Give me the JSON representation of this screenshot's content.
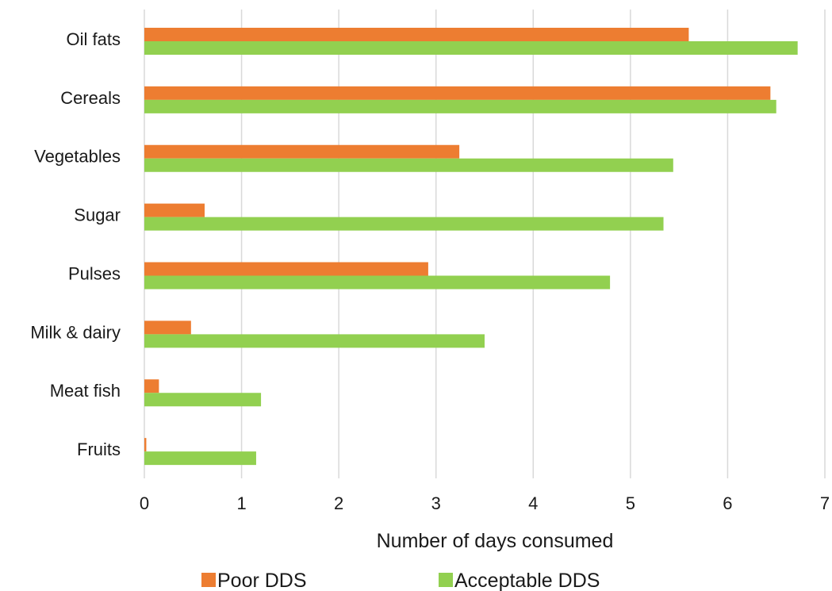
{
  "chart_data": {
    "type": "bar",
    "orientation": "horizontal",
    "categories": [
      "Oil fats",
      "Cereals",
      "Vegetables",
      "Sugar",
      "Pulses",
      "Milk & dairy",
      "Meat fish",
      "Fruits"
    ],
    "series": [
      {
        "name": "Poor DDS",
        "color": "#ED7D31",
        "values": [
          5.6,
          6.44,
          3.24,
          0.62,
          2.92,
          0.48,
          0.15,
          0.02
        ]
      },
      {
        "name": "Acceptable DDS",
        "color": "#92D050",
        "values": [
          6.72,
          6.5,
          5.44,
          5.34,
          4.79,
          3.5,
          1.2,
          1.15
        ]
      }
    ],
    "xlabel": "Number of days consumed",
    "ylabel": "",
    "xlim": [
      0,
      7
    ],
    "x_ticks": [
      "0",
      "1",
      "2",
      "3",
      "4",
      "5",
      "6",
      "7"
    ],
    "grid": "vertical",
    "legend_position": "bottom"
  }
}
